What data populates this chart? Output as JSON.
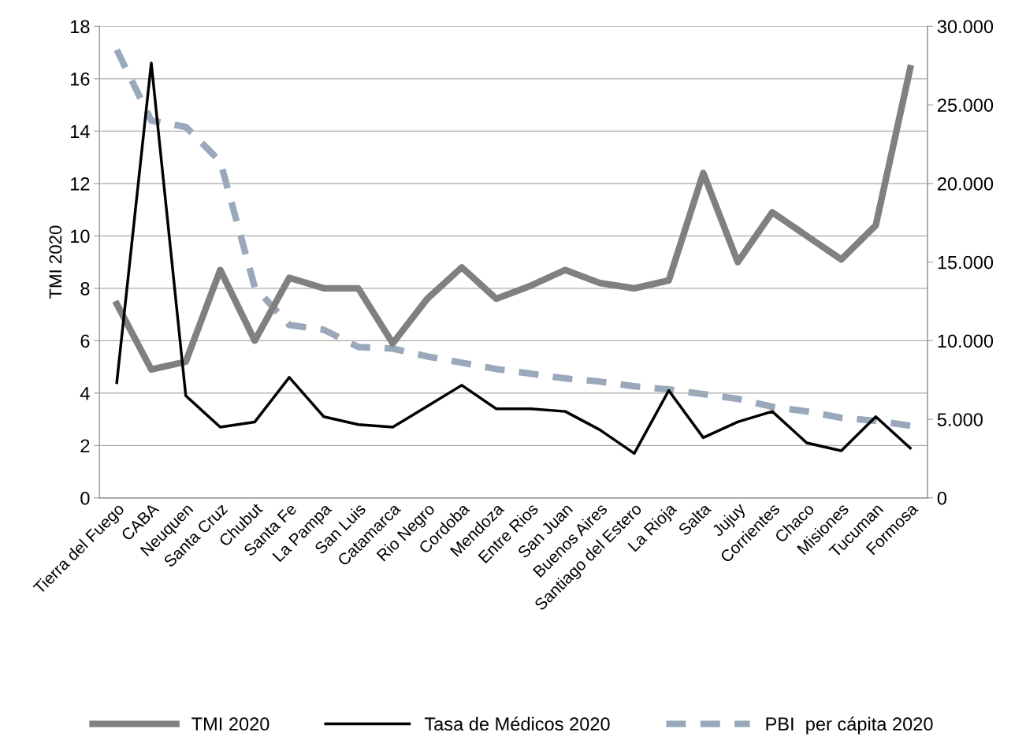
{
  "chart_data": {
    "type": "line",
    "ylabel": "TMI 2020",
    "categories": [
      "Tierra del Fuego",
      "CABA",
      "Neuquen",
      "Santa Cruz",
      "Chubut",
      "Santa Fe",
      "La Pampa",
      "San Luis",
      "Catamarca",
      "Rio Negro",
      "Cordoba",
      "Mendoza",
      "Entre Rios",
      "San Juan",
      "Buenos Aires",
      "Santiago del Estero",
      "La Rioja",
      "Salta",
      "Jujuy",
      "Corrientes",
      "Chaco",
      "Misiones",
      "Tucuman",
      "Formosa"
    ],
    "series": [
      {
        "name": "TMI 2020",
        "color": "#808080",
        "line_style": "solid",
        "values": [
          7.4,
          4.9,
          5.2,
          8.7,
          6.0,
          8.4,
          8.0,
          8.0,
          5.9,
          7.6,
          8.8,
          7.6,
          8.1,
          8.7,
          8.2,
          8.0,
          8.3,
          12.4,
          9.0,
          10.9,
          10.0,
          9.1,
          10.4,
          16.4
        ]
      },
      {
        "name": "Tasa de Médicos 2020",
        "color": "#000000",
        "line_style": "solid",
        "values": [
          4.4,
          16.6,
          3.9,
          2.7,
          2.9,
          4.6,
          3.1,
          2.8,
          2.7,
          3.5,
          4.3,
          3.4,
          3.4,
          3.3,
          2.6,
          1.7,
          4.1,
          2.3,
          2.9,
          3.3,
          2.1,
          1.8,
          3.1,
          1.9
        ]
      },
      {
        "name": "PBI  per cápita 2020",
        "color": "#9aa8bc",
        "line_style": "dashed",
        "axis": "y2",
        "values": [
          28500,
          24000,
          23600,
          21400,
          13400,
          11000,
          10700,
          9600,
          9500,
          9000,
          8600,
          8200,
          7900,
          7600,
          7400,
          7100,
          6900,
          6600,
          6300,
          5800,
          5500,
          5100,
          4900,
          4600
        ]
      }
    ],
    "ylim": [
      0,
      18
    ],
    "yticks": [
      0,
      2,
      4,
      6,
      8,
      10,
      12,
      14,
      16,
      18
    ],
    "y2lim": [
      0,
      30000
    ],
    "y2ticks": [
      0,
      {
        "value": 5000,
        "label": "5.000"
      },
      {
        "value": 10000,
        "label": "10.000"
      },
      {
        "value": 15000,
        "label": "15.000"
      },
      {
        "value": 20000,
        "label": "20.000"
      },
      {
        "value": 25000,
        "label": "25.000"
      },
      {
        "value": 30000,
        "label": "30.000"
      }
    ],
    "grid": "y",
    "legend": "bottom",
    "marker": "none"
  }
}
